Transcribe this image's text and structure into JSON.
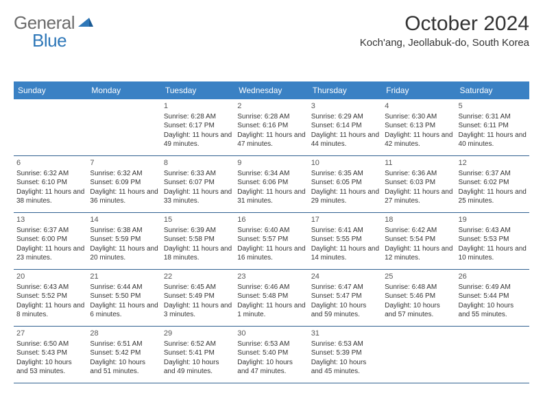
{
  "logo": {
    "part1": "General",
    "part2": "Blue"
  },
  "title": "October 2024",
  "location": "Koch'ang, Jeollabuk-do, South Korea",
  "colors": {
    "header_bg": "#3a81c4",
    "border": "#2e5f8f",
    "logo_gray": "#6b6b6b",
    "logo_blue": "#2e77b8",
    "text": "#333333"
  },
  "dayNames": [
    "Sunday",
    "Monday",
    "Tuesday",
    "Wednesday",
    "Thursday",
    "Friday",
    "Saturday"
  ],
  "weeks": [
    [
      {
        "num": "",
        "sunrise": "",
        "sunset": "",
        "daylight": ""
      },
      {
        "num": "",
        "sunrise": "",
        "sunset": "",
        "daylight": ""
      },
      {
        "num": "1",
        "sunrise": "Sunrise: 6:28 AM",
        "sunset": "Sunset: 6:17 PM",
        "daylight": "Daylight: 11 hours and 49 minutes."
      },
      {
        "num": "2",
        "sunrise": "Sunrise: 6:28 AM",
        "sunset": "Sunset: 6:16 PM",
        "daylight": "Daylight: 11 hours and 47 minutes."
      },
      {
        "num": "3",
        "sunrise": "Sunrise: 6:29 AM",
        "sunset": "Sunset: 6:14 PM",
        "daylight": "Daylight: 11 hours and 44 minutes."
      },
      {
        "num": "4",
        "sunrise": "Sunrise: 6:30 AM",
        "sunset": "Sunset: 6:13 PM",
        "daylight": "Daylight: 11 hours and 42 minutes."
      },
      {
        "num": "5",
        "sunrise": "Sunrise: 6:31 AM",
        "sunset": "Sunset: 6:11 PM",
        "daylight": "Daylight: 11 hours and 40 minutes."
      }
    ],
    [
      {
        "num": "6",
        "sunrise": "Sunrise: 6:32 AM",
        "sunset": "Sunset: 6:10 PM",
        "daylight": "Daylight: 11 hours and 38 minutes."
      },
      {
        "num": "7",
        "sunrise": "Sunrise: 6:32 AM",
        "sunset": "Sunset: 6:09 PM",
        "daylight": "Daylight: 11 hours and 36 minutes."
      },
      {
        "num": "8",
        "sunrise": "Sunrise: 6:33 AM",
        "sunset": "Sunset: 6:07 PM",
        "daylight": "Daylight: 11 hours and 33 minutes."
      },
      {
        "num": "9",
        "sunrise": "Sunrise: 6:34 AM",
        "sunset": "Sunset: 6:06 PM",
        "daylight": "Daylight: 11 hours and 31 minutes."
      },
      {
        "num": "10",
        "sunrise": "Sunrise: 6:35 AM",
        "sunset": "Sunset: 6:05 PM",
        "daylight": "Daylight: 11 hours and 29 minutes."
      },
      {
        "num": "11",
        "sunrise": "Sunrise: 6:36 AM",
        "sunset": "Sunset: 6:03 PM",
        "daylight": "Daylight: 11 hours and 27 minutes."
      },
      {
        "num": "12",
        "sunrise": "Sunrise: 6:37 AM",
        "sunset": "Sunset: 6:02 PM",
        "daylight": "Daylight: 11 hours and 25 minutes."
      }
    ],
    [
      {
        "num": "13",
        "sunrise": "Sunrise: 6:37 AM",
        "sunset": "Sunset: 6:00 PM",
        "daylight": "Daylight: 11 hours and 23 minutes."
      },
      {
        "num": "14",
        "sunrise": "Sunrise: 6:38 AM",
        "sunset": "Sunset: 5:59 PM",
        "daylight": "Daylight: 11 hours and 20 minutes."
      },
      {
        "num": "15",
        "sunrise": "Sunrise: 6:39 AM",
        "sunset": "Sunset: 5:58 PM",
        "daylight": "Daylight: 11 hours and 18 minutes."
      },
      {
        "num": "16",
        "sunrise": "Sunrise: 6:40 AM",
        "sunset": "Sunset: 5:57 PM",
        "daylight": "Daylight: 11 hours and 16 minutes."
      },
      {
        "num": "17",
        "sunrise": "Sunrise: 6:41 AM",
        "sunset": "Sunset: 5:55 PM",
        "daylight": "Daylight: 11 hours and 14 minutes."
      },
      {
        "num": "18",
        "sunrise": "Sunrise: 6:42 AM",
        "sunset": "Sunset: 5:54 PM",
        "daylight": "Daylight: 11 hours and 12 minutes."
      },
      {
        "num": "19",
        "sunrise": "Sunrise: 6:43 AM",
        "sunset": "Sunset: 5:53 PM",
        "daylight": "Daylight: 11 hours and 10 minutes."
      }
    ],
    [
      {
        "num": "20",
        "sunrise": "Sunrise: 6:43 AM",
        "sunset": "Sunset: 5:52 PM",
        "daylight": "Daylight: 11 hours and 8 minutes."
      },
      {
        "num": "21",
        "sunrise": "Sunrise: 6:44 AM",
        "sunset": "Sunset: 5:50 PM",
        "daylight": "Daylight: 11 hours and 6 minutes."
      },
      {
        "num": "22",
        "sunrise": "Sunrise: 6:45 AM",
        "sunset": "Sunset: 5:49 PM",
        "daylight": "Daylight: 11 hours and 3 minutes."
      },
      {
        "num": "23",
        "sunrise": "Sunrise: 6:46 AM",
        "sunset": "Sunset: 5:48 PM",
        "daylight": "Daylight: 11 hours and 1 minute."
      },
      {
        "num": "24",
        "sunrise": "Sunrise: 6:47 AM",
        "sunset": "Sunset: 5:47 PM",
        "daylight": "Daylight: 10 hours and 59 minutes."
      },
      {
        "num": "25",
        "sunrise": "Sunrise: 6:48 AM",
        "sunset": "Sunset: 5:46 PM",
        "daylight": "Daylight: 10 hours and 57 minutes."
      },
      {
        "num": "26",
        "sunrise": "Sunrise: 6:49 AM",
        "sunset": "Sunset: 5:44 PM",
        "daylight": "Daylight: 10 hours and 55 minutes."
      }
    ],
    [
      {
        "num": "27",
        "sunrise": "Sunrise: 6:50 AM",
        "sunset": "Sunset: 5:43 PM",
        "daylight": "Daylight: 10 hours and 53 minutes."
      },
      {
        "num": "28",
        "sunrise": "Sunrise: 6:51 AM",
        "sunset": "Sunset: 5:42 PM",
        "daylight": "Daylight: 10 hours and 51 minutes."
      },
      {
        "num": "29",
        "sunrise": "Sunrise: 6:52 AM",
        "sunset": "Sunset: 5:41 PM",
        "daylight": "Daylight: 10 hours and 49 minutes."
      },
      {
        "num": "30",
        "sunrise": "Sunrise: 6:53 AM",
        "sunset": "Sunset: 5:40 PM",
        "daylight": "Daylight: 10 hours and 47 minutes."
      },
      {
        "num": "31",
        "sunrise": "Sunrise: 6:53 AM",
        "sunset": "Sunset: 5:39 PM",
        "daylight": "Daylight: 10 hours and 45 minutes."
      },
      {
        "num": "",
        "sunrise": "",
        "sunset": "",
        "daylight": ""
      },
      {
        "num": "",
        "sunrise": "",
        "sunset": "",
        "daylight": ""
      }
    ]
  ]
}
